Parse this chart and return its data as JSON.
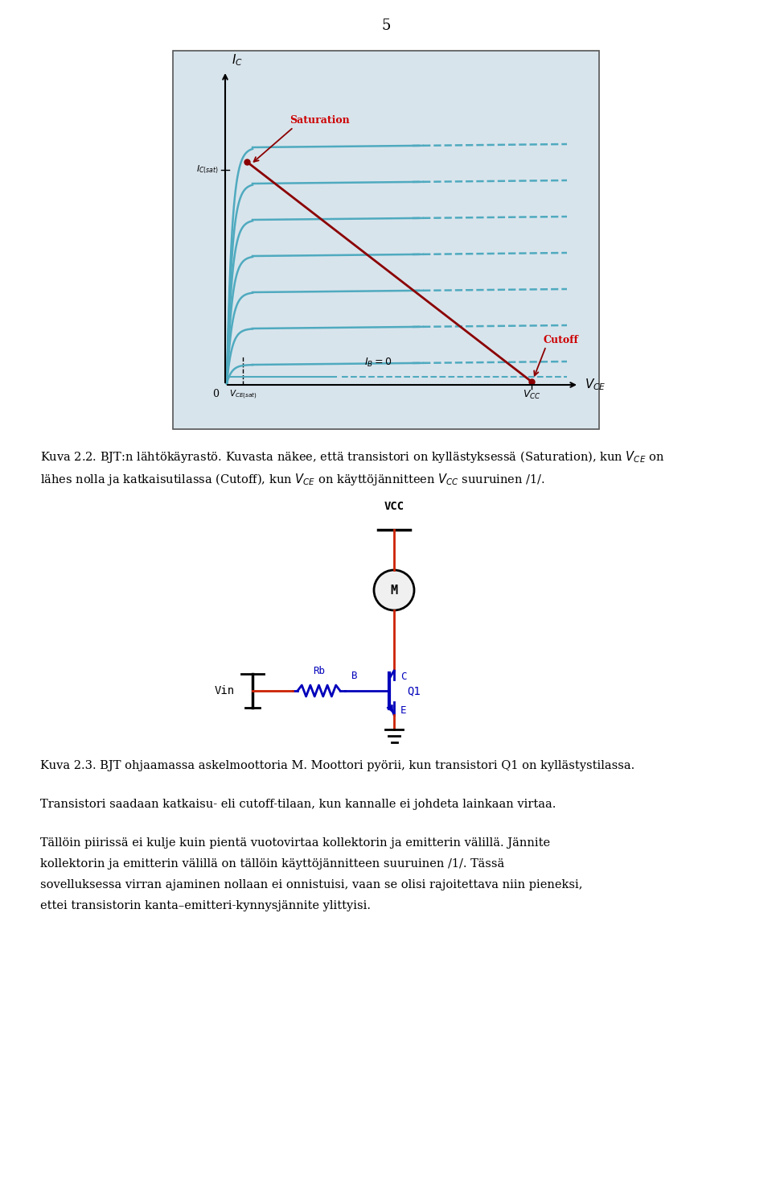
{
  "page_number": "5",
  "background_color": "#ffffff",
  "graph": {
    "bg_color": "#d8e4ec",
    "ic_curves_color": "#4faabf",
    "load_line_color": "#8b0000",
    "saturation_color": "#cc0000",
    "cutoff_color": "#cc0000",
    "num_curves": 8
  },
  "circuit": {
    "line_color_red": "#cc2200",
    "line_color_blue": "#0000bb",
    "text_color_blue": "#0000bb"
  },
  "caption_22_line1": "Kuva 2.2. BJT:n lähtökäyrastö. Kuvasta näkee, että transistori on kyllästyksessä (Saturation), kun $V_{CE}$ on",
  "caption_22_line2": "lähes nolla ja katkaisutilassa (Cutoff), kun $V_{CE}$ on käyttöjännitteen $V_{CC}$ suuruinen /1/.",
  "caption_23": "Kuva 2.3. BJT ohjaamassa askelmoottoria M. Moottori pyörii, kun transistori Q1 on kyllästystilassa.",
  "body_text_1": "Transistori saadaan katkaisu- eli cutoff-tilaan, kun kannalle ei johdeta lainkaan virtaa.",
  "body_text_2a": "Tällöin piirissä ei kulje kuin pientä vuotovirtaa kollektorin ja emitterin välillä. Jännite",
  "body_text_2b": "kollektorin ja emitterin välillä on tällöin käyttöjännitteen suuruinen /1/. Tässä",
  "body_text_2c": "sovelluksessa virran ajaminen nollaan ei onnistuisi, vaan se olisi rajoitettava niin pieneksi,",
  "body_text_2d": "ettei transistorin kanta–emitteri-kynnysjännite ylittyisi."
}
